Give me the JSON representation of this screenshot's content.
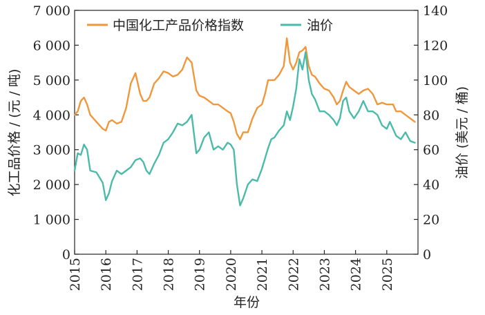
{
  "chart_data": {
    "type": "line",
    "x": [
      2015.0,
      2015.1,
      2015.2,
      2015.3,
      2015.4,
      2015.5,
      2015.7,
      2015.9,
      2016.0,
      2016.1,
      2016.2,
      2016.35,
      2016.5,
      2016.65,
      2016.8,
      2016.95,
      2017.1,
      2017.2,
      2017.3,
      2017.4,
      2017.55,
      2017.7,
      2017.85,
      2018.0,
      2018.15,
      2018.3,
      2018.45,
      2018.6,
      2018.75,
      2018.9,
      2019.0,
      2019.15,
      2019.3,
      2019.45,
      2019.6,
      2019.75,
      2019.9,
      2020.0,
      2020.1,
      2020.2,
      2020.3,
      2020.4,
      2020.55,
      2020.7,
      2020.85,
      2021.0,
      2021.1,
      2021.2,
      2021.3,
      2021.4,
      2021.55,
      2021.7,
      2021.8,
      2021.9,
      2022.0,
      2022.1,
      2022.2,
      2022.3,
      2022.4,
      2022.5,
      2022.6,
      2022.7,
      2022.85,
      2023.0,
      2023.15,
      2023.3,
      2023.4,
      2023.5,
      2023.6,
      2023.7,
      2023.8,
      2023.95,
      2024.1,
      2024.25,
      2024.4,
      2024.55,
      2024.7,
      2024.85,
      2025.0,
      2025.1,
      2025.2,
      2025.3,
      2025.45,
      2025.6,
      2025.75,
      2025.9
    ],
    "title": "",
    "xlabel": "年份",
    "ylabel": "化工品价格 / (元 / 吨)",
    "ylabel_right": "油价 (美元 / 桶)",
    "xlim": [
      2015,
      2026
    ],
    "ylim": [
      0,
      7000
    ],
    "ylim_right": [
      0,
      140
    ],
    "yticks": [
      "0",
      "1 000",
      "2 000",
      "3 000",
      "4 000",
      "5 000",
      "6 000",
      "7 000"
    ],
    "yticks_right": [
      "0",
      "20",
      "40",
      "60",
      "80",
      "100",
      "120",
      "140"
    ],
    "xticks": [
      "2015",
      "2016",
      "2017",
      "2018",
      "2019",
      "2020",
      "2021",
      "2022",
      "2023",
      "2024",
      "2025"
    ],
    "series": [
      {
        "name": "中国化工产品价格指数",
        "axis": "left",
        "color": "#f0973b",
        "values": [
          4000,
          4100,
          4400,
          4500,
          4300,
          4000,
          3800,
          3600,
          3550,
          3800,
          3850,
          3750,
          3800,
          4200,
          4900,
          5200,
          4600,
          4400,
          4400,
          4500,
          4900,
          5050,
          5250,
          5200,
          5100,
          5150,
          5300,
          5650,
          5500,
          4700,
          4550,
          4500,
          4400,
          4300,
          4300,
          4200,
          4100,
          4050,
          3800,
          3450,
          3300,
          3500,
          3500,
          3900,
          4200,
          4300,
          4600,
          5000,
          5000,
          5000,
          5150,
          5400,
          6200,
          5500,
          5300,
          5500,
          5800,
          5850,
          5950,
          5400,
          5150,
          5100,
          4900,
          4750,
          4700,
          4500,
          4300,
          4400,
          4700,
          4950,
          4800,
          4700,
          4600,
          4700,
          4750,
          4600,
          4300,
          4350,
          4300,
          4300,
          4300,
          4100,
          4100,
          4000,
          3900,
          3800
        ]
      },
      {
        "name": "油价",
        "axis": "right",
        "color": "#4bbaa8",
        "values": [
          48,
          58,
          57,
          63,
          60,
          48,
          47,
          41,
          31,
          35,
          42,
          48,
          46,
          48,
          50,
          54,
          55,
          53,
          48,
          46,
          52,
          57,
          64,
          66,
          70,
          75,
          74,
          76,
          80,
          58,
          60,
          67,
          70,
          60,
          62,
          60,
          64,
          63,
          60,
          40,
          28,
          32,
          40,
          43,
          42,
          49,
          55,
          61,
          66,
          67,
          71,
          74,
          82,
          77,
          85,
          95,
          112,
          106,
          116,
          100,
          92,
          89,
          82,
          82,
          80,
          77,
          74,
          78,
          88,
          90,
          82,
          78,
          82,
          88,
          82,
          82,
          80,
          74,
          72,
          76,
          72,
          68,
          66,
          70,
          65,
          64
        ]
      }
    ]
  },
  "legend": {
    "items": [
      "中国化工产品价格指数",
      "油价"
    ]
  }
}
